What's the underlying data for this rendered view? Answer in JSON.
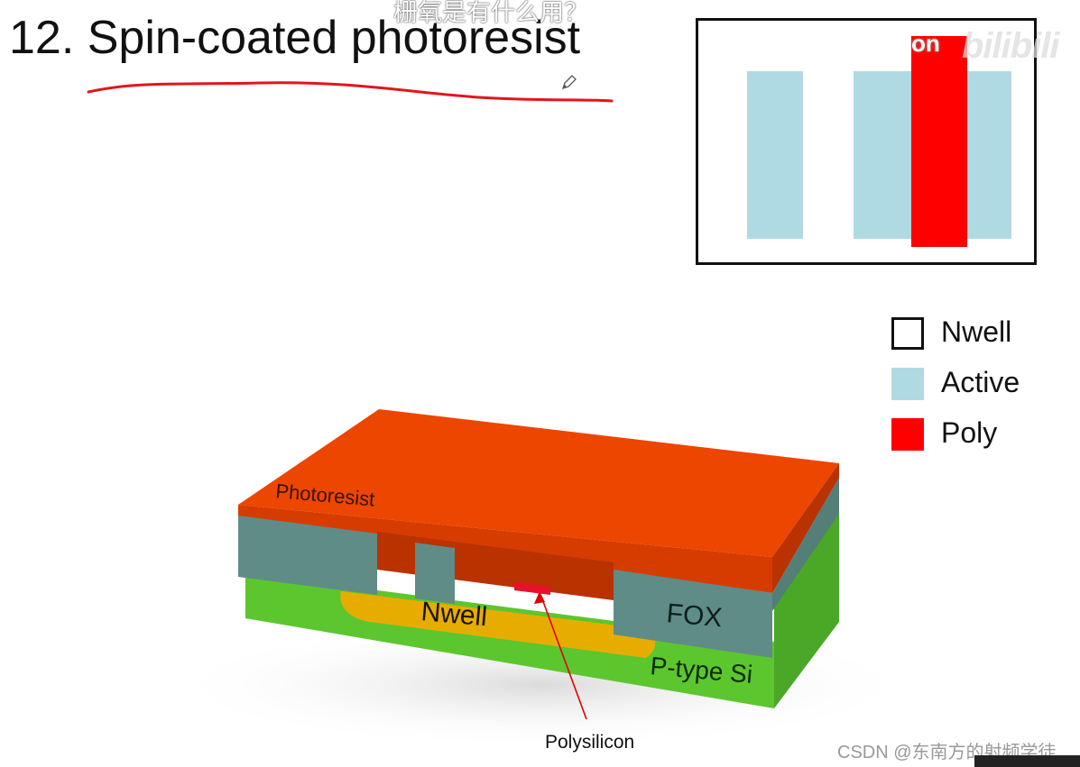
{
  "slide": {
    "title": "12. Spin-coated photoresist",
    "subtitle_overlay": "栅氧是有什么用？"
  },
  "layout_view": {
    "watermark_on": "on",
    "watermark_logo": "bilibili",
    "colors": {
      "active": "#b0dae3",
      "poly": "#ff0000",
      "nwell_border": "#111111"
    }
  },
  "legend": {
    "items": [
      {
        "label": "Nwell",
        "color": "#ffffff",
        "border": "#111111"
      },
      {
        "label": "Active",
        "color": "#b0dae3",
        "border": "#b0dae3"
      },
      {
        "label": "Poly",
        "color": "#ff0000",
        "border": "#ff0000"
      }
    ]
  },
  "cross_section": {
    "labels": {
      "photoresist": "Photoresist",
      "nwell": "Nwell",
      "fox": "FOX",
      "substrate": "P-type Si",
      "polysilicon": "Polysilicon"
    },
    "colors": {
      "photoresist_top": "#ec4600",
      "photoresist_side": "#b93200",
      "fox": "#5f8c86",
      "nwell": "#e6ad00",
      "substrate": "#5cc62e",
      "substrate_side": "#4aa826",
      "poly": "#e8102a",
      "arrow": "#e00000"
    }
  },
  "watermark": {
    "csdn": "CSDN @东南方的射频学徒"
  }
}
